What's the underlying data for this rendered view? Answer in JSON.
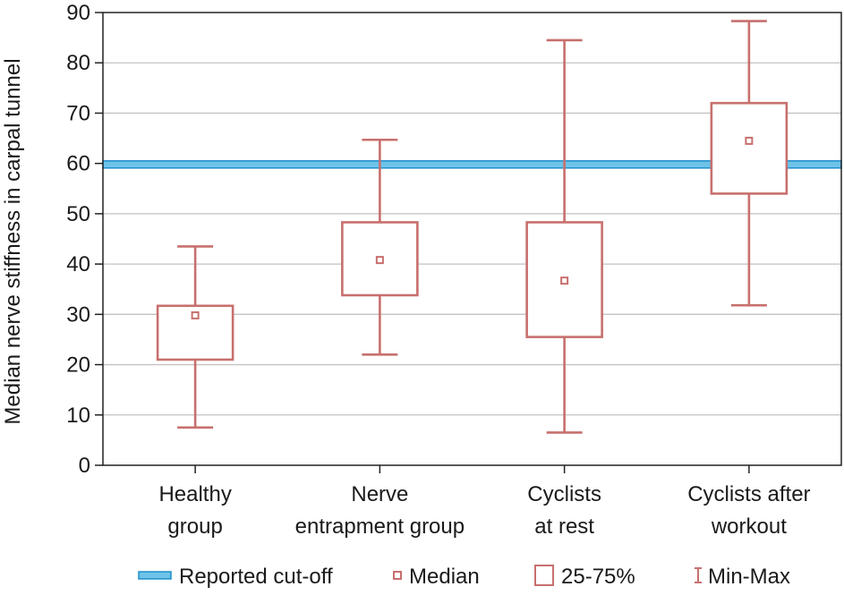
{
  "chart_data": {
    "type": "box",
    "ylabel": "Median nerve stiffness in carpal tunnel",
    "xlabel": "",
    "ylim": [
      0,
      90
    ],
    "yticks": [
      0,
      10,
      20,
      30,
      40,
      50,
      60,
      70,
      80,
      90
    ],
    "grid": true,
    "categories": [
      [
        "Healthy",
        "group"
      ],
      [
        "Nerve",
        "entrapment group"
      ],
      [
        "Cyclists",
        "at rest"
      ],
      [
        "Cyclists after",
        "workout"
      ]
    ],
    "boxes": [
      {
        "min": 7.5,
        "q1": 21,
        "median": 29.8,
        "q3": 31.7,
        "max": 43.5
      },
      {
        "min": 22,
        "q1": 33.8,
        "median": 40.8,
        "q3": 48.3,
        "max": 64.7
      },
      {
        "min": 6.5,
        "q1": 25.5,
        "median": 36.7,
        "q3": 48.3,
        "max": 84.5
      },
      {
        "min": 31.8,
        "q1": 54,
        "median": 64.5,
        "q3": 72,
        "max": 88.3
      }
    ],
    "reference_line": {
      "label": "Reported cut-off",
      "value": 59.8
    },
    "legend": {
      "position": "bottom",
      "items": [
        "Reported cut-off",
        "Median",
        "25-75%",
        "Min-Max"
      ]
    },
    "colors": {
      "box": "#c7706e",
      "cutoff_fill": "#6ec3e8",
      "cutoff_edge": "#1f8ecb",
      "grid": "#c2c2c2",
      "axis": "#222222"
    }
  }
}
